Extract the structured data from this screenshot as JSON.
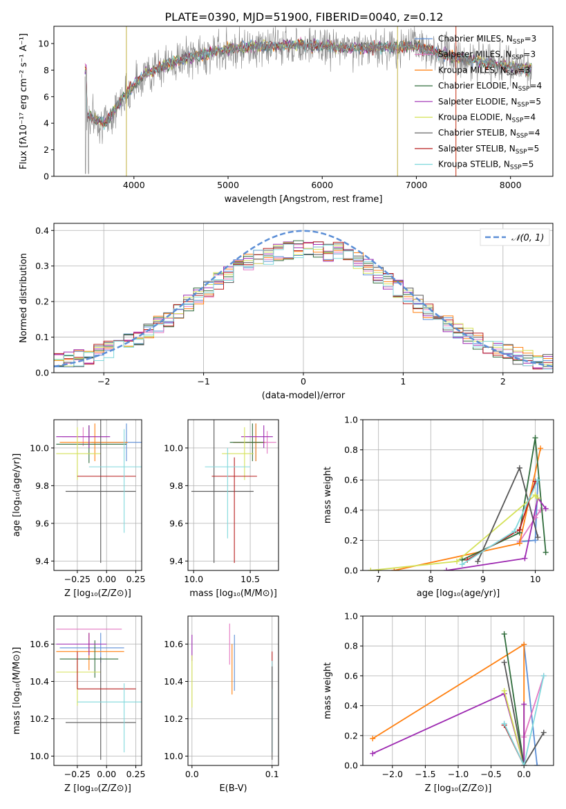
{
  "title": "PLATE=0390, MJD=51900, FIBERID=0040, z=0.12",
  "colors": {
    "Chabrier MILES": "#5b8ed6",
    "Salpeter MILES": "#e377c2",
    "Kroupa MILES": "#ff7f0e",
    "Chabrier ELODIE": "#2e6b3a",
    "Salpeter ELODIE": "#9c27b0",
    "Kroupa ELODIE": "#d4e157",
    "Chabrier STELIB": "#555555",
    "Salpeter STELIB": "#b71c1c",
    "Kroupa STELIB": "#7fd8dc",
    "data": "#808080"
  },
  "chart_data": [
    {
      "id": "spectrum",
      "type": "line",
      "xlabel": "wavelength [Angstrom, rest frame]",
      "ylabel": "Flux [fλ10⁻¹⁷ erg cm⁻² s⁻¹ A⁻¹]",
      "xlim": [
        3150,
        8450
      ],
      "ylim": [
        0,
        11.3
      ],
      "xticks": [
        4000,
        5000,
        6000,
        7000,
        8000
      ],
      "yticks": [
        0,
        2,
        4,
        6,
        8,
        10
      ],
      "legend_position": "right",
      "legend": [
        {
          "label": "Chabrier MILES, N",
          "sub": "SSP",
          "suffix": "=3"
        },
        {
          "label": "Salpeter MILES, N",
          "sub": "SSP",
          "suffix": "=3"
        },
        {
          "label": "Kroupa MILES, N",
          "sub": "SSP",
          "suffix": "=3"
        },
        {
          "label": "Chabrier ELODIE, N",
          "sub": "SSP",
          "suffix": "=4"
        },
        {
          "label": "Salpeter ELODIE, N",
          "sub": "SSP",
          "suffix": "=5"
        },
        {
          "label": "Kroupa ELODIE, N",
          "sub": "SSP",
          "suffix": "=4"
        },
        {
          "label": "Chabrier STELIB, N",
          "sub": "SSP",
          "suffix": "=4"
        },
        {
          "label": "Salpeter STELIB, N",
          "sub": "SSP",
          "suffix": "=5"
        },
        {
          "label": "Kroupa STELIB, N",
          "sub": "SSP",
          "suffix": "=5"
        }
      ],
      "continuum": {
        "x": [
          3500,
          3700,
          3850,
          3950,
          4100,
          4300,
          4600,
          5000,
          5400,
          5800,
          6200,
          6600,
          7000,
          7400,
          7800,
          8200
        ],
        "y": [
          4.6,
          4.0,
          5.6,
          6.5,
          7.6,
          8.3,
          9.0,
          9.6,
          9.8,
          9.9,
          9.7,
          9.7,
          9.8,
          9.0,
          8.5,
          8.0
        ]
      }
    },
    {
      "id": "residuals",
      "type": "line",
      "xlabel": "(data-model)/error",
      "ylabel": "Normed distribution",
      "xlim": [
        -2.5,
        2.5
      ],
      "ylim": [
        0,
        0.42
      ],
      "xticks": [
        -2,
        -1,
        0,
        1,
        2
      ],
      "yticks": [
        0.0,
        0.1,
        0.2,
        0.3,
        0.4
      ],
      "legend": "𝒩(0, 1)",
      "legend_position": "top-right",
      "grid": true
    },
    {
      "id": "age-vs-Z",
      "type": "scatter",
      "xlabel": "Z [log₁₀(Z/Z⊙)]",
      "ylabel": "age  [log₁₀(age/yr)]",
      "xlim": [
        -0.45,
        0.3
      ],
      "ylim": [
        9.35,
        10.15
      ],
      "xticks": [
        -0.25,
        0.0,
        0.25
      ],
      "xticklabels": [
        "−0.25",
        "0.00",
        "0.25"
      ],
      "yticks": [
        9.4,
        9.6,
        9.8,
        10.0
      ],
      "points": [
        {
          "series": "Chabrier MILES",
          "x": 0.17,
          "y": 10.03,
          "xerr": [
            0.3,
            0.3
          ],
          "yerr": [
            0.1,
            0.1
          ]
        },
        {
          "series": "Salpeter MILES",
          "x": -0.2,
          "y": 10.06,
          "xerr": [
            0.18,
            0.2
          ],
          "yerr": [
            0.05,
            0.05
          ]
        },
        {
          "series": "Kroupa MILES",
          "x": -0.1,
          "y": 10.03,
          "xerr": [
            0.3,
            0.28
          ],
          "yerr": [
            0.1,
            0.1
          ]
        },
        {
          "series": "Chabrier ELODIE",
          "x": -0.15,
          "y": 10.02,
          "xerr": [
            0.28,
            0.32
          ],
          "yerr": [
            0.1,
            0.1
          ]
        },
        {
          "series": "Salpeter ELODIE",
          "x": -0.15,
          "y": 10.06,
          "xerr": [
            0.28,
            0.18
          ],
          "yerr": [
            0.06,
            0.06
          ]
        },
        {
          "series": "Kroupa ELODIE",
          "x": -0.25,
          "y": 9.97,
          "xerr": [
            0.18,
            0.2
          ],
          "yerr": [
            0.14,
            0.14
          ]
        },
        {
          "series": "Chabrier STELIB",
          "x": -0.05,
          "y": 9.77,
          "xerr": [
            0.3,
            0.3
          ],
          "yerr": [
            0.38,
            0.38
          ]
        },
        {
          "series": "Salpeter STELIB",
          "x": -0.25,
          "y": 9.85,
          "xerr": [
            0.0,
            0.5
          ],
          "yerr": [
            0.0,
            0.0
          ]
        },
        {
          "series": "Kroupa STELIB",
          "x": 0.15,
          "y": 9.9,
          "xerr": [
            0.3,
            0.15
          ],
          "yerr": [
            0.35,
            0.2
          ]
        }
      ]
    },
    {
      "id": "age-vs-mass",
      "type": "scatter",
      "xlabel": "mass [log₁₀(M/M⊙)]",
      "xlim": [
        9.95,
        10.75
      ],
      "ylim": [
        9.35,
        10.15
      ],
      "xticks": [
        10.0,
        10.5
      ],
      "yticks": [
        9.4,
        9.6,
        9.8,
        10.0
      ],
      "points": [
        {
          "series": "Chabrier MILES",
          "x": 10.55,
          "y": 10.03,
          "xerr": [
            0.2,
            0.1
          ],
          "yerr": [
            0.1,
            0.1
          ]
        },
        {
          "series": "Salpeter MILES",
          "x": 10.65,
          "y": 10.03,
          "xerr": [
            0.3,
            0.08
          ],
          "yerr": [
            0.06,
            0.06
          ]
        },
        {
          "series": "Kroupa MILES",
          "x": 10.55,
          "y": 10.03,
          "xerr": [
            0.2,
            0.08
          ],
          "yerr": [
            0.1,
            0.1
          ]
        },
        {
          "series": "Chabrier ELODIE",
          "x": 10.52,
          "y": 10.03,
          "xerr": [
            0.2,
            0.1
          ],
          "yerr": [
            0.1,
            0.1
          ]
        },
        {
          "series": "Salpeter ELODIE",
          "x": 10.62,
          "y": 10.06,
          "xerr": [
            0.2,
            0.08
          ],
          "yerr": [
            0.06,
            0.06
          ]
        },
        {
          "series": "Kroupa ELODIE",
          "x": 10.45,
          "y": 9.97,
          "xerr": [
            0.2,
            0.08
          ],
          "yerr": [
            0.14,
            0.14
          ]
        },
        {
          "series": "Chabrier STELIB",
          "x": 10.18,
          "y": 9.77,
          "xerr": [
            0.2,
            0.35
          ],
          "yerr": [
            0.38,
            0.38
          ]
        },
        {
          "series": "Salpeter STELIB",
          "x": 10.36,
          "y": 9.85,
          "xerr": [
            0.2,
            0.2
          ],
          "yerr": [
            0.46,
            0.1
          ]
        },
        {
          "series": "Kroupa STELIB",
          "x": 10.3,
          "y": 9.9,
          "xerr": [
            0.2,
            0.2
          ],
          "yerr": [
            0.38,
            0.1
          ]
        }
      ]
    },
    {
      "id": "weight-vs-age",
      "type": "line",
      "xlabel": "age  [log₁₀(age/yr)]",
      "ylabel": "mass weight",
      "xlim": [
        6.7,
        10.35
      ],
      "ylim": [
        0,
        1.0
      ],
      "xticks": [
        7,
        8,
        9,
        10
      ],
      "yticks": [
        0.0,
        0.2,
        0.4,
        0.6,
        0.8,
        1.0
      ],
      "grid": true,
      "series": [
        {
          "name": "Chabrier MILES",
          "x": [
            9.7,
            10.0,
            10.05
          ],
          "y": [
            0.19,
            0.2,
            0.6
          ]
        },
        {
          "name": "Salpeter MILES",
          "x": [
            9.7,
            10.0,
            10.1
          ],
          "y": [
            0.19,
            0.35,
            0.4
          ]
        },
        {
          "name": "Kroupa MILES",
          "x": [
            7.3,
            9.7,
            10.1
          ],
          "y": [
            0.0,
            0.18,
            0.81
          ]
        },
        {
          "name": "Chabrier ELODIE",
          "x": [
            8.6,
            9.7,
            10.0,
            10.2
          ],
          "y": [
            0.07,
            0.25,
            0.88,
            0.12
          ]
        },
        {
          "name": "Salpeter ELODIE",
          "x": [
            8.3,
            9.8,
            10.05,
            10.2
          ],
          "y": [
            0.0,
            0.08,
            0.48,
            0.41
          ]
        },
        {
          "name": "Kroupa ELODIE",
          "x": [
            6.85,
            8.5,
            10.0,
            10.05
          ],
          "y": [
            0.0,
            0.06,
            0.5,
            0.48
          ]
        },
        {
          "name": "Chabrier STELIB",
          "x": [
            8.9,
            9.7,
            10.05
          ],
          "y": [
            0.06,
            0.68,
            0.22
          ]
        },
        {
          "name": "Salpeter STELIB",
          "x": [
            8.7,
            9.7,
            10.0
          ],
          "y": [
            0.07,
            0.27,
            0.59
          ]
        },
        {
          "name": "Kroupa STELIB",
          "x": [
            8.6,
            9.6,
            10.05
          ],
          "y": [
            0.04,
            0.26,
            0.6
          ]
        }
      ]
    },
    {
      "id": "mass-vs-Z",
      "type": "scatter",
      "xlabel": "Z [log₁₀(Z/Z⊙)]",
      "ylabel": "mass [log₁₀(M/M⊙)]",
      "xlim": [
        -0.45,
        0.3
      ],
      "ylim": [
        9.95,
        10.75
      ],
      "xticks": [
        -0.25,
        0.0,
        0.25
      ],
      "xticklabels": [
        "−0.25",
        "0.00",
        "0.25"
      ],
      "yticks": [
        10.0,
        10.2,
        10.4,
        10.6
      ],
      "points": [
        {
          "series": "Chabrier MILES",
          "x": -0.05,
          "y": 10.58,
          "xerr": [
            0.35,
            0.2
          ],
          "yerr": [
            0.08,
            0.08
          ]
        },
        {
          "series": "Salpeter MILES",
          "x": -0.15,
          "y": 10.68,
          "xerr": [
            0.28,
            0.28
          ],
          "yerr": [
            0.0,
            0.0
          ]
        },
        {
          "series": "Kroupa MILES",
          "x": -0.15,
          "y": 10.56,
          "xerr": [
            0.28,
            0.3
          ],
          "yerr": [
            0.1,
            0.1
          ]
        },
        {
          "series": "Chabrier ELODIE",
          "x": -0.1,
          "y": 10.52,
          "xerr": [
            0.3,
            0.2
          ],
          "yerr": [
            0.1,
            0.1
          ]
        },
        {
          "series": "Salpeter ELODIE",
          "x": -0.15,
          "y": 10.6,
          "xerr": [
            0.28,
            0.15
          ],
          "yerr": [
            0.06,
            0.06
          ]
        },
        {
          "series": "Kroupa ELODIE",
          "x": -0.25,
          "y": 10.45,
          "xerr": [
            0.18,
            0.2
          ],
          "yerr": [
            0.18,
            0.06
          ]
        },
        {
          "series": "Chabrier STELIB",
          "x": -0.05,
          "y": 10.18,
          "xerr": [
            0.3,
            0.3
          ],
          "yerr": [
            0.2,
            0.35
          ]
        },
        {
          "series": "Salpeter STELIB",
          "x": -0.25,
          "y": 10.36,
          "xerr": [
            0.0,
            0.5
          ],
          "yerr": [
            0.0,
            0.2
          ]
        },
        {
          "series": "Kroupa STELIB",
          "x": 0.15,
          "y": 10.29,
          "xerr": [
            0.4,
            0.15
          ],
          "yerr": [
            0.27,
            0.1
          ]
        }
      ]
    },
    {
      "id": "mass-vs-EBV",
      "type": "scatter",
      "xlabel": "E(B-V)",
      "xlim": [
        -0.005,
        0.108
      ],
      "ylim": [
        9.95,
        10.75
      ],
      "xticks": [
        0.0,
        0.1
      ],
      "yticks": [
        10.0,
        10.2,
        10.4,
        10.6
      ],
      "points": [
        {
          "series": "Salpeter ELODIE",
          "x": 0.0,
          "y": 10.58,
          "xerr": [
            0,
            0
          ],
          "yerr": [
            0.07,
            0.07
          ]
        },
        {
          "series": "Kroupa ELODIE",
          "x": 0.0,
          "y": 10.42,
          "xerr": [
            0,
            0
          ],
          "yerr": [
            0.16,
            0.12
          ]
        },
        {
          "series": "Salpeter MILES",
          "x": 0.047,
          "y": 10.6,
          "xerr": [
            0,
            0
          ],
          "yerr": [
            0.11,
            0.11
          ]
        },
        {
          "series": "Kroupa MILES",
          "x": 0.05,
          "y": 10.48,
          "xerr": [
            0,
            0
          ],
          "yerr": [
            0.15,
            0.12
          ]
        },
        {
          "series": "Chabrier MILES",
          "x": 0.053,
          "y": 10.5,
          "xerr": [
            0,
            0
          ],
          "yerr": [
            0.15,
            0.15
          ]
        },
        {
          "series": "Salpeter STELIB",
          "x": 0.1,
          "y": 10.36,
          "xerr": [
            0,
            0
          ],
          "yerr": [
            0.0,
            0.2
          ]
        },
        {
          "series": "Kroupa STELIB",
          "x": 0.1,
          "y": 10.29,
          "xerr": [
            0,
            0
          ],
          "yerr": [
            0.27,
            0.22
          ]
        },
        {
          "series": "Chabrier STELIB",
          "x": 0.1,
          "y": 10.18,
          "xerr": [
            0,
            0
          ],
          "yerr": [
            0.2,
            0.3
          ]
        }
      ]
    },
    {
      "id": "weight-vs-Z",
      "type": "line",
      "xlabel": "Z [log₁₀(Z/Z⊙)]",
      "ylabel": "mass weight",
      "xlim": [
        -2.45,
        0.45
      ],
      "ylim": [
        0,
        1.0
      ],
      "xticks": [
        -2.0,
        -1.5,
        -1.0,
        -0.5,
        0.0
      ],
      "xticklabels": [
        "−2.0",
        "−1.5",
        "−1.0",
        "−0.5",
        "0.0"
      ],
      "yticks": [
        0.0,
        0.2,
        0.4,
        0.6,
        0.8,
        1.0
      ],
      "grid": true,
      "series": [
        {
          "name": "Chabrier MILES",
          "x": [
            0.0,
            0.2
          ],
          "y": [
            0.81,
            0.0
          ]
        },
        {
          "name": "Salpeter MILES",
          "x": [
            0.0,
            0.3
          ],
          "y": [
            0.19,
            0.6
          ]
        },
        {
          "name": "Kroupa MILES",
          "x": [
            -2.3,
            0.0,
            0.0
          ],
          "y": [
            0.18,
            0.81,
            0.0
          ]
        },
        {
          "name": "Chabrier ELODIE",
          "x": [
            -0.3,
            0.0
          ],
          "y": [
            0.88,
            0.0
          ]
        },
        {
          "name": "Salpeter ELODIE",
          "x": [
            -2.3,
            -0.3,
            0.0,
            0.0
          ],
          "y": [
            0.08,
            0.48,
            0.0,
            0.41
          ]
        },
        {
          "name": "Kroupa ELODIE",
          "x": [
            -0.3,
            0.0
          ],
          "y": [
            0.5,
            0.0
          ]
        },
        {
          "name": "Chabrier STELIB",
          "x": [
            -0.3,
            0.0,
            0.3
          ],
          "y": [
            0.69,
            0.0,
            0.22
          ]
        },
        {
          "name": "Salpeter STELIB",
          "x": [
            -0.3,
            0.0
          ],
          "y": [
            0.27,
            0.0
          ]
        },
        {
          "name": "Kroupa STELIB",
          "x": [
            -0.3,
            0.0,
            0.3
          ],
          "y": [
            0.28,
            0.0,
            0.6
          ]
        }
      ]
    }
  ]
}
